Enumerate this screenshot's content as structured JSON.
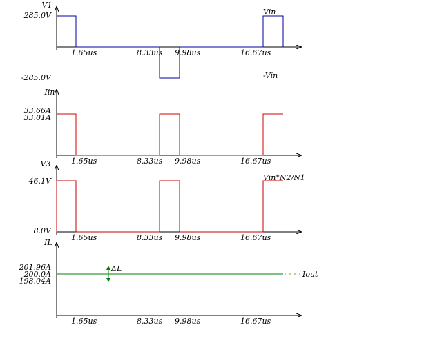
{
  "panels": [
    {
      "axis_label": "V1",
      "levels": [
        "285.0V",
        "-285.0V"
      ],
      "times": [
        "1.65us",
        "8.33us",
        "9.98us",
        "16.67us"
      ],
      "annotations": [
        "Vin",
        "-Vin"
      ]
    },
    {
      "axis_label": "Iin",
      "levels": [
        "33.66A",
        "33.01A"
      ],
      "times": [
        "1.65us",
        "8.33us",
        "9.98us",
        "16.67us"
      ]
    },
    {
      "axis_label": "V3",
      "levels": [
        "46.1V",
        "8.0V"
      ],
      "times": [
        "1.65us",
        "8.33us",
        "9.98us",
        "16.67us"
      ],
      "annotations": [
        "Vin*N2/N1"
      ]
    },
    {
      "axis_label": "IL",
      "levels": [
        "201.96A",
        "200.0A",
        "198.04A"
      ],
      "times": [
        "1.65us",
        "8.33us",
        "9.98us",
        "16.67us"
      ],
      "annotations": [
        "Iout",
        "ΔL"
      ]
    }
  ]
}
